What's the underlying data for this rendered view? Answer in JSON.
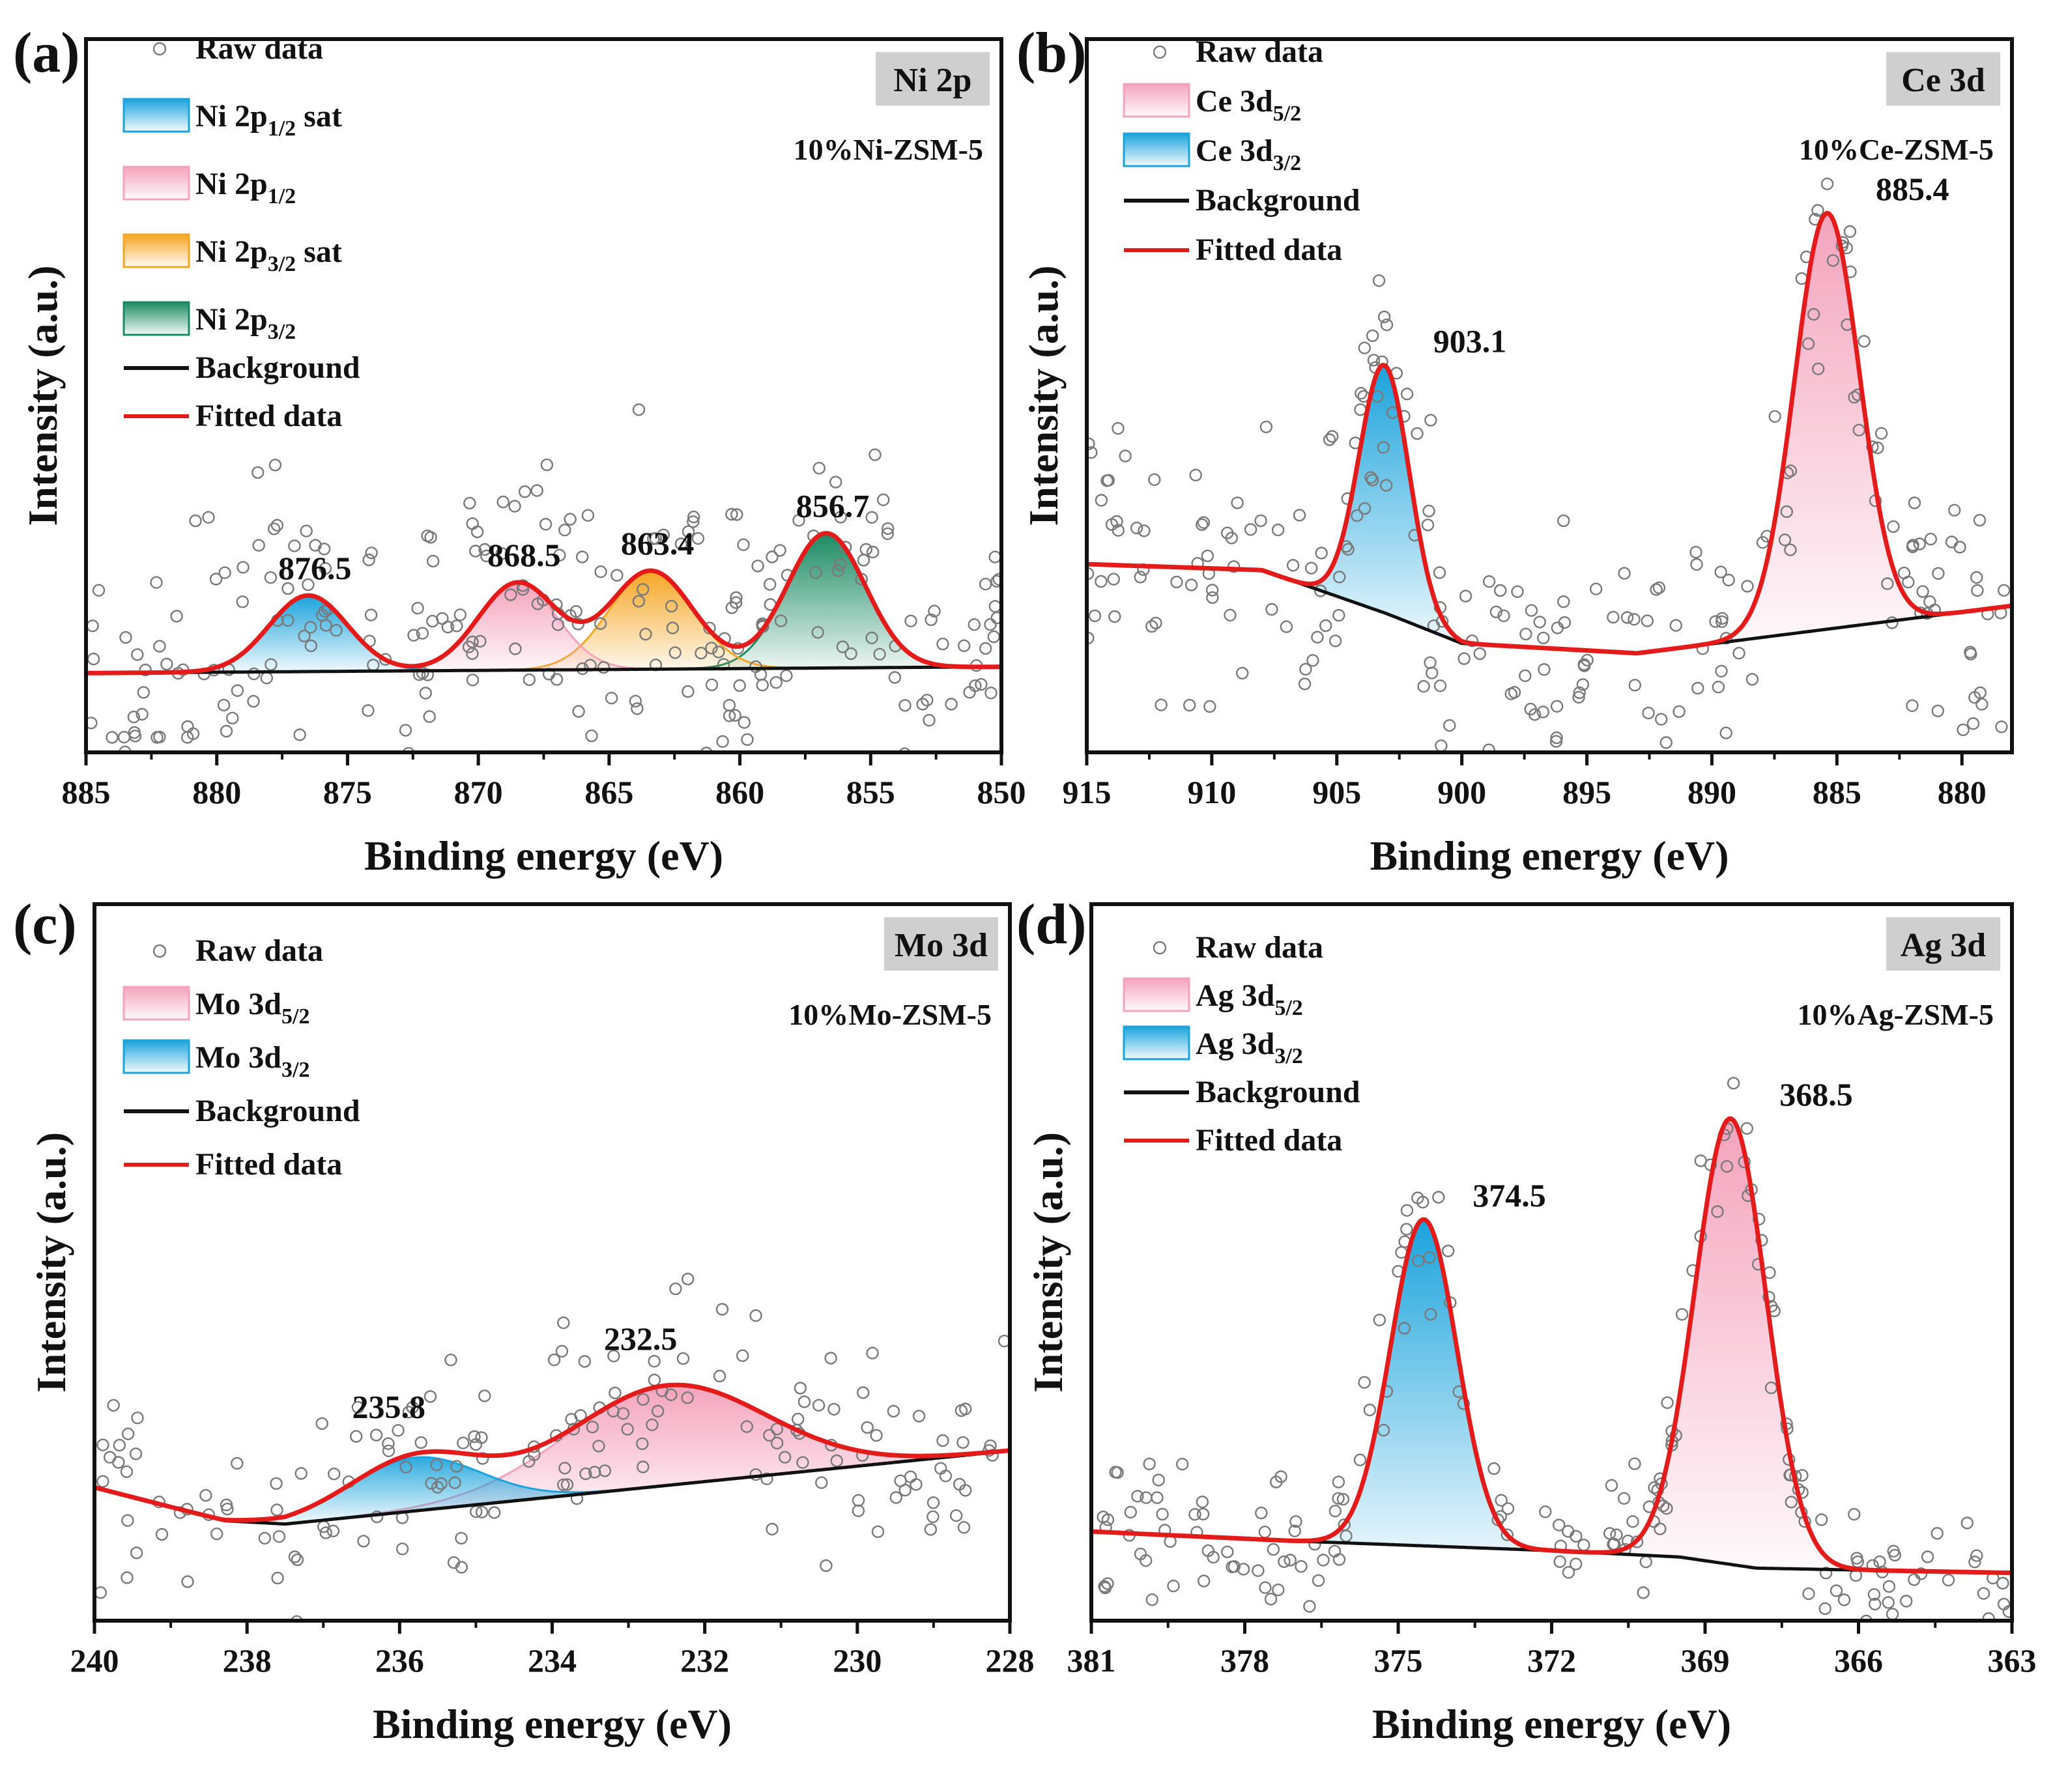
{
  "figure": {
    "panels_count": 4
  },
  "chart_data": [
    {
      "type": "scatter",
      "panel_label": "(a)",
      "element_label": "Ni 2p",
      "sample_label": "10%Ni-ZSM-5",
      "xlabel": "Binding energy (eV)",
      "ylabel": "Intensity (a.u.)",
      "xlim": [
        885,
        850
      ],
      "ylim": [
        -0.5,
        4.0
      ],
      "x_ticks": [
        885,
        880,
        875,
        870,
        865,
        860,
        855,
        850
      ],
      "x_tick_labels": [
        "885",
        "880",
        "875",
        "870",
        "865",
        "860",
        "855",
        "850"
      ],
      "background": {
        "name": "Background",
        "x": [
          885,
          850
        ],
        "y": [
          0,
          0.04
        ]
      },
      "peaks": [
        {
          "name": "Ni 2p",
          "sub": "3/2",
          "suffix": "",
          "center": 856.7,
          "height": 0.85,
          "sigma": 1.5,
          "color": "#1a8a63",
          "label": "856.7"
        },
        {
          "name": "Ni 2p",
          "sub": "3/2",
          "suffix": " sat",
          "center": 863.4,
          "height": 0.62,
          "sigma": 1.6,
          "color": "#f5a623",
          "label": "863.4"
        },
        {
          "name": "Ni 2p",
          "sub": "1/2",
          "suffix": "",
          "center": 868.5,
          "height": 0.55,
          "sigma": 1.5,
          "color": "#f4a3bd",
          "label": "868.5"
        },
        {
          "name": "Ni 2p",
          "sub": "1/2",
          "suffix": " sat",
          "center": 876.5,
          "height": 0.48,
          "sigma": 1.5,
          "color": "#1aa3dc",
          "label": "876.5"
        }
      ],
      "legend": {
        "raw": "Raw data",
        "background": "Background",
        "fitted": "Fitted data"
      },
      "raw_noise": 0.55,
      "raw_points": 260
    },
    {
      "type": "scatter",
      "panel_label": "(b)",
      "element_label": "Ce 3d",
      "sample_label": "10%Ce-ZSM-5",
      "xlabel": "Binding energy (eV)",
      "ylabel": "Intensity (a.u.)",
      "xlim": [
        915,
        878
      ],
      "ylim": [
        -0.5,
        3.1
      ],
      "x_ticks": [
        915,
        910,
        905,
        900,
        895,
        890,
        885,
        880
      ],
      "x_tick_labels": [
        "915",
        "910",
        "905",
        "900",
        "895",
        "890",
        "885",
        "880"
      ],
      "background": {
        "name": "Background",
        "x": [
          915,
          908,
          903,
          900,
          893,
          888,
          878
        ],
        "y": [
          0.45,
          0.42,
          0.2,
          0.05,
          0.0,
          0.08,
          0.24
        ]
      },
      "peaks": [
        {
          "name": "Ce 3d",
          "sub": "5/2",
          "suffix": "",
          "center": 885.4,
          "height": 2.1,
          "sigma": 1.3,
          "color": "#f4a3bd",
          "label": "885.4"
        },
        {
          "name": "Ce 3d",
          "sub": "3/2",
          "suffix": "",
          "center": 903.1,
          "height": 1.25,
          "sigma": 1.0,
          "color": "#1aa3dc",
          "label": "903.1"
        }
      ],
      "legend": {
        "raw": "Raw data",
        "background": "Background",
        "fitted": "Fitted data"
      },
      "raw_noise": 0.42,
      "raw_points": 240
    },
    {
      "type": "scatter",
      "panel_label": "(c)",
      "element_label": "Mo 3d",
      "sample_label": "10%Mo-ZSM-5",
      "xlabel": "Binding energy (eV)",
      "ylabel": "Intensity (a.u.)",
      "xlim": [
        240,
        228
      ],
      "ylim": [
        -0.6,
        3.7
      ],
      "x_ticks": [
        240,
        238,
        236,
        234,
        232,
        230,
        228
      ],
      "x_tick_labels": [
        "240",
        "238",
        "236",
        "234",
        "232",
        "230",
        "228"
      ],
      "background": {
        "name": "Background",
        "x": [
          240,
          238.3,
          237.5,
          228
        ],
        "y": [
          0.2,
          0.0,
          -0.02,
          0.42
        ]
      },
      "peaks": [
        {
          "name": "Mo 3d",
          "sub": "5/2",
          "suffix": "",
          "center": 232.5,
          "height": 0.6,
          "sigma": 1.3,
          "color": "#f4a3bd",
          "label": "232.5"
        },
        {
          "name": "Mo 3d",
          "sub": "3/2",
          "suffix": "",
          "center": 235.8,
          "height": 0.32,
          "sigma": 0.85,
          "color": "#1aa3dc",
          "label": "235.8"
        }
      ],
      "legend": {
        "raw": "Raw data",
        "background": "Background",
        "fitted": "Fitted data"
      },
      "raw_noise": 0.38,
      "raw_points": 170
    },
    {
      "type": "scatter",
      "panel_label": "(d)",
      "element_label": "Ag 3d",
      "sample_label": "10%Ag-ZSM-5",
      "xlabel": "Binding energy (eV)",
      "ylabel": "Intensity (a.u.)",
      "xlim": [
        381,
        363
      ],
      "ylim": [
        -0.5,
        4.0
      ],
      "x_ticks": [
        381,
        378,
        375,
        372,
        369,
        366,
        363
      ],
      "x_tick_labels": [
        "381",
        "378",
        "375",
        "372",
        "369",
        "366",
        "363"
      ],
      "background": {
        "name": "Background",
        "x": [
          381,
          377,
          372,
          369.5,
          368,
          363
        ],
        "y": [
          0.06,
          0.0,
          -0.06,
          -0.1,
          -0.17,
          -0.2
        ]
      },
      "peaks": [
        {
          "name": "Ag 3d",
          "sub": "5/2",
          "suffix": "",
          "center": 368.5,
          "height": 2.8,
          "sigma": 0.7,
          "color": "#f4a3bd",
          "label": "368.5"
        },
        {
          "name": "Ag 3d",
          "sub": "3/2",
          "suffix": "",
          "center": 374.5,
          "height": 2.05,
          "sigma": 0.65,
          "color": "#1aa3dc",
          "label": "374.5"
        }
      ],
      "legend": {
        "raw": "Raw data",
        "background": "Background",
        "fitted": "Fitted data"
      },
      "raw_noise": 0.28,
      "raw_points": 200
    }
  ],
  "colors": {
    "fit_line": "#e31b1b",
    "background_line": "#111111",
    "raw_marker": "#7a7a7a",
    "frame": "#111111",
    "element_box": "#cfcfcf"
  }
}
